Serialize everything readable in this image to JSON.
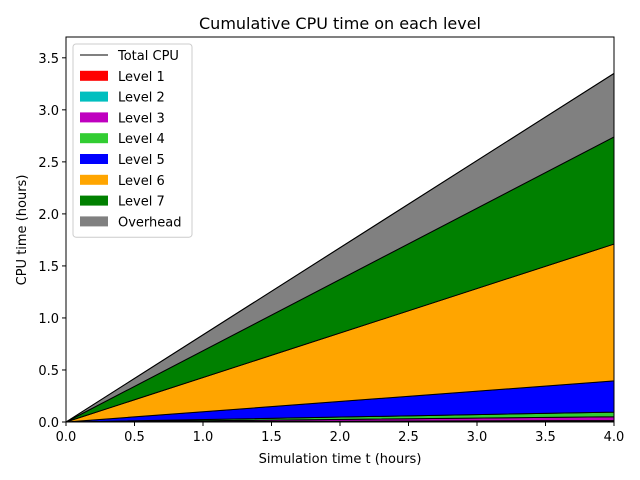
{
  "chart_data": {
    "type": "area",
    "title": "Cumulative CPU time on each level",
    "xlabel": "Simulation time t (hours)",
    "ylabel": "CPU time (hours)",
    "xlim": [
      0.0,
      4.0
    ],
    "ylim": [
      0.0,
      3.7
    ],
    "x_ticks": [
      "0.0",
      "0.5",
      "1.0",
      "1.5",
      "2.0",
      "2.5",
      "3.0",
      "3.5",
      "4.0"
    ],
    "y_ticks": [
      "0.0",
      "0.5",
      "1.0",
      "1.5",
      "2.0",
      "2.5",
      "3.0",
      "3.5"
    ],
    "legend_position": "top-left",
    "x": [
      0.0,
      4.0
    ],
    "total_line": {
      "name": "Total CPU",
      "color": "#000000",
      "values": [
        0.0,
        3.35
      ]
    },
    "series": [
      {
        "name": "Level 1",
        "color": "#ff0000",
        "values": [
          0.0,
          0.01
        ]
      },
      {
        "name": "Level 2",
        "color": "#00bfbf",
        "values": [
          0.0,
          0.005
        ]
      },
      {
        "name": "Level 3",
        "color": "#bf00bf",
        "values": [
          0.0,
          0.035
        ]
      },
      {
        "name": "Level 4",
        "color": "#32cd32",
        "values": [
          0.0,
          0.045
        ]
      },
      {
        "name": "Level 5",
        "color": "#0000ff",
        "values": [
          0.0,
          0.3
        ]
      },
      {
        "name": "Level 6",
        "color": "#ffa500",
        "values": [
          0.0,
          1.315
        ]
      },
      {
        "name": "Level 7",
        "color": "#008000",
        "values": [
          0.0,
          1.03
        ]
      },
      {
        "name": "Overhead",
        "color": "#808080",
        "values": [
          0.0,
          0.61
        ]
      }
    ]
  }
}
